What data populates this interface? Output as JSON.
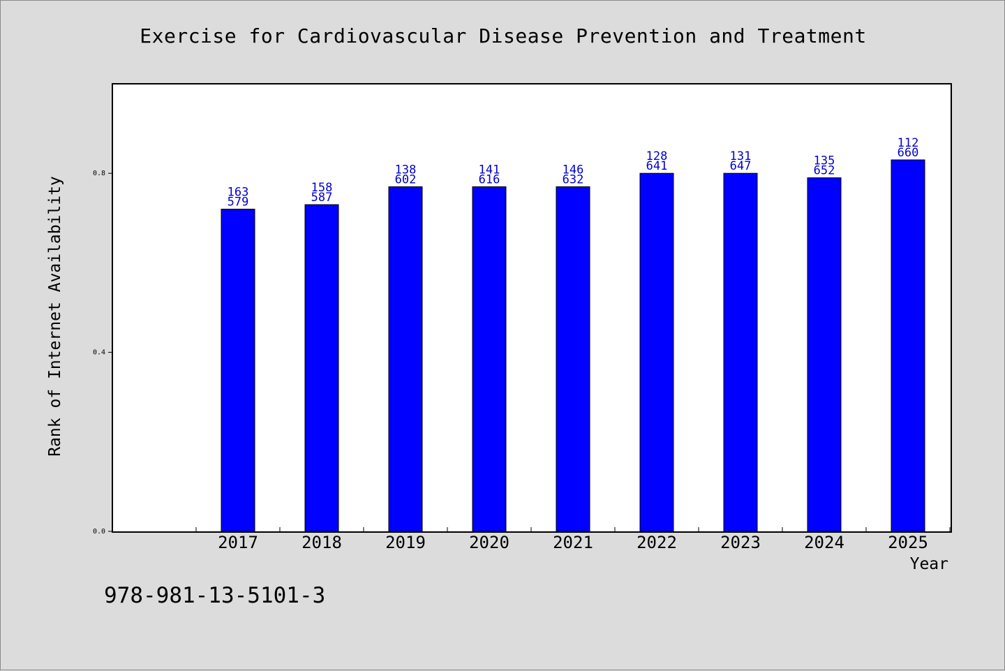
{
  "chart_data": {
    "type": "bar",
    "title": "Exercise for Cardiovascular Disease Prevention and Treatment",
    "xlabel": "Year",
    "ylabel": "Rank of Internet Availability",
    "categories": [
      "2017",
      "2018",
      "2019",
      "2020",
      "2021",
      "2022",
      "2023",
      "2024",
      "2025"
    ],
    "series": [
      {
        "values": [
          0.72,
          0.73,
          0.77,
          0.77,
          0.77,
          0.8,
          0.8,
          0.79,
          0.83
        ],
        "label_top": [
          "163",
          "158",
          "138",
          "141",
          "146",
          "128",
          "131",
          "135",
          "112"
        ],
        "label_bottom": [
          "579",
          "587",
          "602",
          "616",
          "632",
          "641",
          "647",
          "652",
          "660"
        ],
        "color": "#0000ff"
      }
    ],
    "ylim": [
      0,
      1.0
    ],
    "yticks": [
      "0.0",
      "0.4",
      "0.8"
    ],
    "grid": false,
    "label_color": "#0000cc"
  },
  "footer": {
    "isbn": "978-981-13-5101-3"
  }
}
